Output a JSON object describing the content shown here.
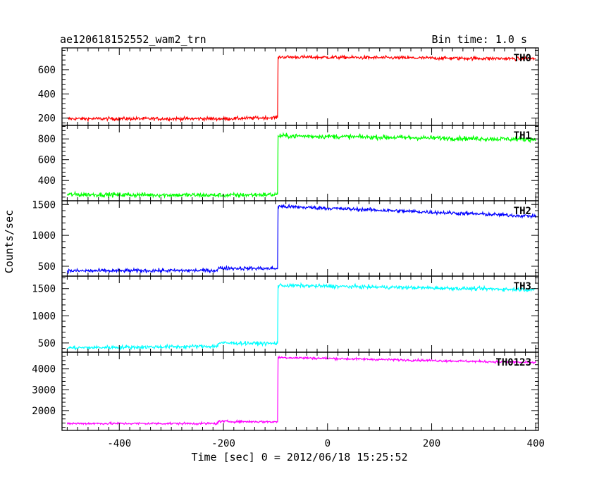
{
  "chart_data": {
    "type": "line",
    "title_left": "ae120618152552_wam2_trn",
    "title_right": "Bin time: 1.0 s",
    "xlabel": "Time [sec] 0 = 2012/06/18 15:25:52",
    "ylabel": "Counts/sec",
    "xlim": [
      -510,
      405
    ],
    "x_ticks": [
      -400,
      -200,
      0,
      200,
      400
    ],
    "grid": false,
    "panels": [
      {
        "name": "TH0",
        "color": "#ff0000",
        "ylim": [
          140,
          780
        ],
        "y_ticks": [
          200,
          400,
          600
        ],
        "profile": [
          [
            -500,
            195
          ],
          [
            -200,
            195
          ],
          [
            -96,
            205
          ],
          [
            -95,
            705
          ],
          [
            400,
            690
          ]
        ],
        "noise": 14
      },
      {
        "name": "TH1",
        "color": "#00ff00",
        "ylim": [
          205,
          930
        ],
        "y_ticks": [
          400,
          600,
          800
        ],
        "profile": [
          [
            -500,
            265
          ],
          [
            -200,
            258
          ],
          [
            -96,
            265
          ],
          [
            -95,
            830
          ],
          [
            400,
            795
          ]
        ],
        "noise": 22
      },
      {
        "name": "TH2",
        "color": "#0000ff",
        "ylim": [
          340,
          1560
        ],
        "y_ticks": [
          500,
          1000,
          1500
        ],
        "profile": [
          [
            -500,
            425
          ],
          [
            -211,
            432
          ],
          [
            -210,
            470
          ],
          [
            -96,
            462
          ],
          [
            -95,
            1470
          ],
          [
            400,
            1310
          ]
        ],
        "noise": 30
      },
      {
        "name": "TH3",
        "color": "#00ffff",
        "ylim": [
          330,
          1730
        ],
        "y_ticks": [
          500,
          1000,
          1500
        ],
        "profile": [
          [
            -500,
            410
          ],
          [
            -211,
            440
          ],
          [
            -210,
            500
          ],
          [
            -96,
            490
          ],
          [
            -95,
            1560
          ],
          [
            400,
            1480
          ]
        ],
        "noise": 34
      },
      {
        "name": "TH0123",
        "color": "#ff00ff",
        "ylim": [
          1050,
          4800
        ],
        "y_ticks": [
          2000,
          3000,
          4000
        ],
        "profile": [
          [
            -500,
            1380
          ],
          [
            -211,
            1380
          ],
          [
            -210,
            1480
          ],
          [
            -96,
            1460
          ],
          [
            -95,
            4550
          ],
          [
            400,
            4300
          ]
        ],
        "noise": 55
      }
    ]
  }
}
